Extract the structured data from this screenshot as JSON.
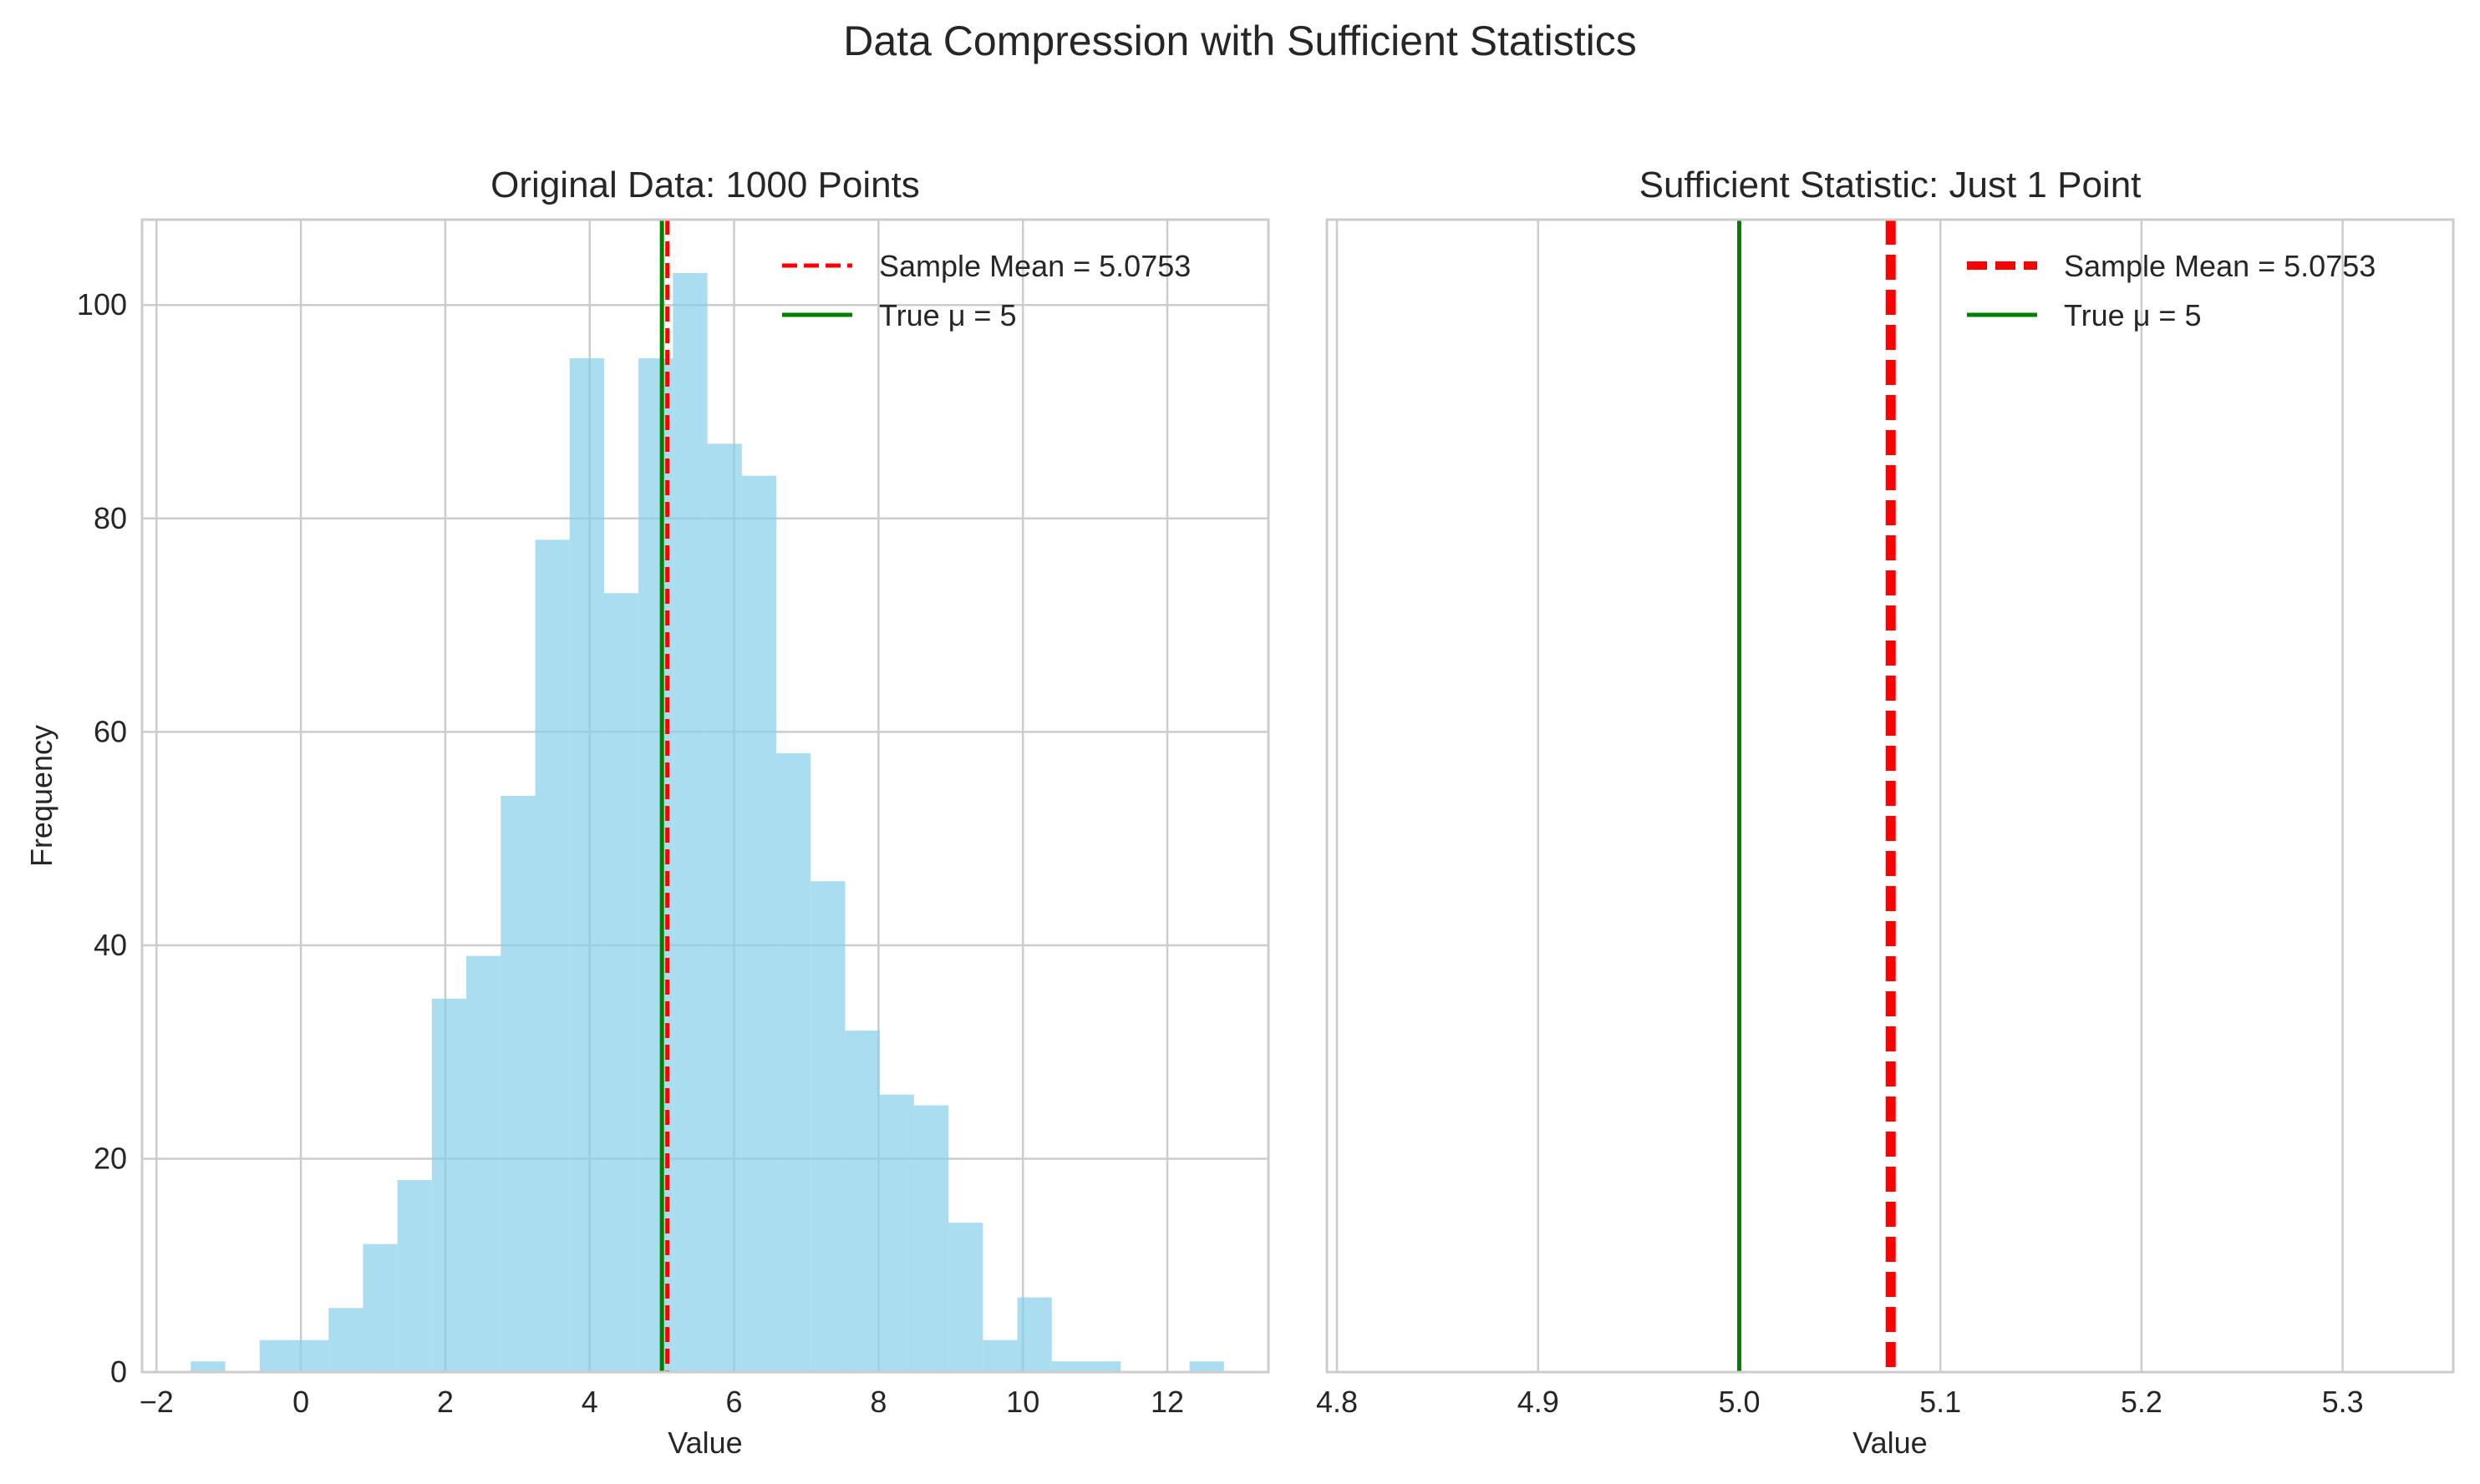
{
  "figure": {
    "suptitle": "Data Compression with Sufficient Statistics"
  },
  "chart_data": [
    {
      "type": "bar",
      "title": "Original Data: 1000 Points",
      "xlabel": "Value",
      "ylabel": "Frequency",
      "xlim": [
        -2.2,
        13.4
      ],
      "ylim": [
        0,
        108
      ],
      "xticks": [
        -2,
        0,
        2,
        4,
        6,
        8,
        10,
        12
      ],
      "xtick_labels": [
        "−2",
        "0",
        "2",
        "4",
        "6",
        "8",
        "10",
        "12"
      ],
      "yticks": [
        0,
        20,
        40,
        60,
        80,
        100
      ],
      "ytick_labels": [
        "0",
        "20",
        "40",
        "60",
        "80",
        "100"
      ],
      "grid": true,
      "bar_color": "#87CEEB",
      "bin_edges": [
        -1.525,
        -1.048,
        -0.571,
        -0.094,
        0.383,
        0.86,
        1.337,
        1.814,
        2.291,
        2.768,
        3.245,
        3.722,
        4.199,
        4.676,
        5.153,
        5.63,
        6.107,
        6.584,
        7.061,
        7.538,
        8.015,
        8.492,
        8.969,
        9.446,
        9.923,
        10.4,
        10.877,
        11.354,
        11.831,
        12.308,
        12.785
      ],
      "values": [
        1,
        0,
        3,
        3,
        6,
        12,
        18,
        35,
        39,
        54,
        78,
        95,
        73,
        95,
        103,
        87,
        84,
        58,
        46,
        32,
        26,
        25,
        14,
        3,
        7,
        1,
        1,
        0,
        0,
        1
      ],
      "lines": [
        {
          "label": "Sample Mean = 5.0753",
          "x": 5.0753,
          "color": "#ff0000",
          "style": "dashed"
        },
        {
          "label": "True μ = 5",
          "x": 5,
          "color": "#008000",
          "style": "solid"
        }
      ],
      "legend": {
        "position": "upper right",
        "entries": [
          "Sample Mean = 5.0753",
          "True μ = 5"
        ]
      }
    },
    {
      "type": "line",
      "title": "Sufficient Statistic: Just 1 Point",
      "xlabel": "Value",
      "xlim": [
        4.795,
        5.355
      ],
      "xticks": [
        4.8,
        4.9,
        5.0,
        5.1,
        5.2,
        5.3
      ],
      "xtick_labels": [
        "4.8",
        "4.9",
        "5.0",
        "5.1",
        "5.2",
        "5.3"
      ],
      "grid": true,
      "lines": [
        {
          "label": "Sample Mean = 5.0753",
          "x": 5.0753,
          "color": "#ff0000",
          "style": "dashed"
        },
        {
          "label": "True μ = 5",
          "x": 5,
          "color": "#008000",
          "style": "solid"
        }
      ],
      "legend": {
        "position": "upper right",
        "entries": [
          "Sample Mean = 5.0753",
          "True μ = 5"
        ]
      }
    }
  ]
}
